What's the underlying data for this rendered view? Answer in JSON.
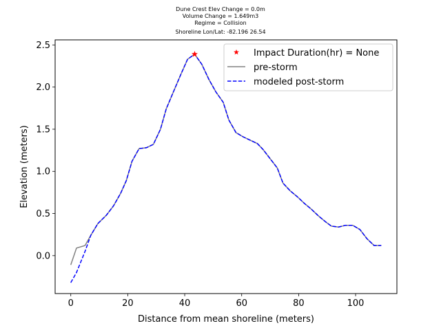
{
  "chart_data": {
    "type": "line",
    "title_lines": [
      "Dune Crest Elev Change = 0.0m",
      "Volume Change = 1.649m3",
      "Regime = Collision",
      "Shoreline Lon/Lat: -82.196 26.54"
    ],
    "xlabel": "Distance from mean shoreline (meters)",
    "ylabel": "Elevation (meters)",
    "xlim": [
      -5.5,
      114.5
    ],
    "ylim": [
      -0.45,
      2.56
    ],
    "xticks": [
      0,
      20,
      40,
      60,
      80,
      100
    ],
    "yticks": [
      0.0,
      0.5,
      1.0,
      1.5,
      2.0,
      2.5
    ],
    "xtick_labels": [
      "0",
      "20",
      "40",
      "60",
      "80",
      "100"
    ],
    "ytick_labels": [
      "0.0",
      "0.5",
      "1.0",
      "1.5",
      "2.0",
      "2.5"
    ],
    "legend_position": "top-right",
    "series": [
      {
        "name": "pre-storm",
        "style": "solid",
        "color": "#808080",
        "x": [
          0,
          2,
          5,
          7,
          9.5,
          12.5,
          15,
          17.5,
          19.5,
          21.5,
          24,
          26.5,
          29,
          31.5,
          33.5,
          36,
          38.5,
          41,
          43.5,
          46,
          48.5,
          51,
          53.5,
          55.5,
          58,
          60.5,
          63,
          65.5,
          67.5,
          70,
          72.5,
          74.5,
          77,
          79.5,
          82,
          84.5,
          87,
          89.5,
          91.5,
          94,
          96.5,
          99,
          101.5,
          104,
          106.5,
          109
        ],
        "y": [
          -0.11,
          0.09,
          0.12,
          0.24,
          0.38,
          0.48,
          0.59,
          0.74,
          0.89,
          1.12,
          1.27,
          1.28,
          1.32,
          1.5,
          1.74,
          1.94,
          2.14,
          2.33,
          2.39,
          2.27,
          2.09,
          1.94,
          1.82,
          1.61,
          1.46,
          1.41,
          1.37,
          1.33,
          1.26,
          1.15,
          1.04,
          0.86,
          0.77,
          0.7,
          0.62,
          0.55,
          0.47,
          0.4,
          0.35,
          0.34,
          0.36,
          0.36,
          0.31,
          0.2,
          0.12,
          0.12
        ]
      },
      {
        "name": "modeled post-storm",
        "style": "dashed",
        "color": "#0000ff",
        "x": [
          0,
          2,
          5,
          7,
          9.5,
          12.5,
          15,
          17.5,
          19.5,
          21.5,
          24,
          26.5,
          29,
          31.5,
          33.5,
          36,
          38.5,
          41,
          43.5,
          46,
          48.5,
          51,
          53.5,
          55.5,
          58,
          60.5,
          63,
          65.5,
          67.5,
          70,
          72.5,
          74.5,
          77,
          79.5,
          82,
          84.5,
          87,
          89.5,
          91.5,
          94,
          96.5,
          99,
          101.5,
          104,
          106.5,
          109
        ],
        "y": [
          -0.32,
          -0.2,
          0.05,
          0.24,
          0.38,
          0.48,
          0.59,
          0.74,
          0.89,
          1.12,
          1.27,
          1.28,
          1.32,
          1.5,
          1.74,
          1.94,
          2.14,
          2.33,
          2.39,
          2.27,
          2.09,
          1.94,
          1.82,
          1.61,
          1.46,
          1.41,
          1.37,
          1.33,
          1.26,
          1.15,
          1.04,
          0.86,
          0.77,
          0.7,
          0.62,
          0.55,
          0.47,
          0.4,
          0.35,
          0.34,
          0.36,
          0.36,
          0.31,
          0.2,
          0.12,
          0.12
        ]
      }
    ],
    "markers": [
      {
        "name": "Impact Duration(hr) = None",
        "marker": "star",
        "color": "#ff0000",
        "x": 43.5,
        "y": 2.39
      }
    ]
  }
}
